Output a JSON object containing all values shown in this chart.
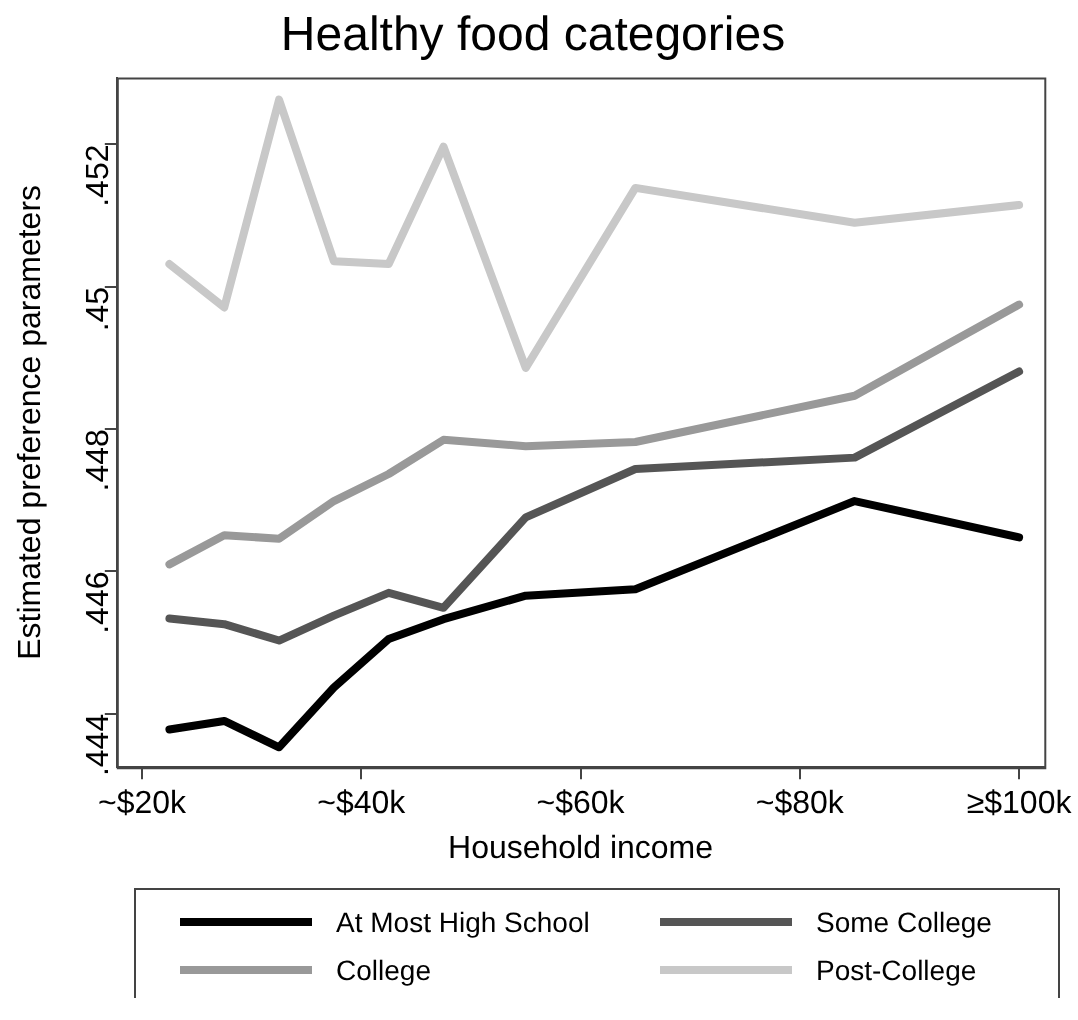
{
  "chart_data": {
    "type": "line",
    "title": "Healthy food categories",
    "xlabel": "Household income",
    "ylabel": "Estimated preference parameters",
    "x": [
      22.5,
      27.5,
      32.5,
      37.5,
      42.5,
      47.5,
      55,
      65,
      85,
      100
    ],
    "series": [
      {
        "name": "At Most High School",
        "color": "#000000",
        "values": [
          0.44378,
          0.4439,
          0.44353,
          0.44437,
          0.44505,
          0.44533,
          0.44566,
          0.44575,
          0.44699,
          0.44648
        ]
      },
      {
        "name": "Some College",
        "color": "#555555",
        "values": [
          0.44534,
          0.44526,
          0.44503,
          0.44538,
          0.4457,
          0.44549,
          0.44676,
          0.44744,
          0.4476,
          0.44881
        ]
      },
      {
        "name": "College",
        "color": "#999999",
        "values": [
          0.4461,
          0.44651,
          0.44646,
          0.44699,
          0.44737,
          0.44785,
          0.44776,
          0.44782,
          0.44847,
          0.44975
        ]
      },
      {
        "name": "Post-College",
        "color": "#c8c8c8",
        "values": [
          0.45032,
          0.44971,
          0.45263,
          0.45036,
          0.45032,
          0.45197,
          0.44886,
          0.45139,
          0.4509,
          0.45115
        ]
      }
    ],
    "xlim": [
      17.7,
      102.3
    ],
    "xticks": [
      {
        "value": 20,
        "label": "~$20k"
      },
      {
        "value": 40,
        "label": "~$40k"
      },
      {
        "value": 60,
        "label": "~$60k"
      },
      {
        "value": 80,
        "label": "~$80k"
      },
      {
        "value": 100,
        "label": "≥$100k"
      }
    ],
    "ylim": [
      0.44325,
      0.45294
    ],
    "yticks": [
      {
        "value": 0.444,
        "label": ".444"
      },
      {
        "value": 0.446,
        "label": ".446"
      },
      {
        "value": 0.448,
        "label": ".448"
      },
      {
        "value": 0.45,
        "label": ".45"
      },
      {
        "value": 0.452,
        "label": ".452"
      }
    ],
    "grid": false,
    "legend": "bottom",
    "marker": "none",
    "line_style": "solid"
  }
}
